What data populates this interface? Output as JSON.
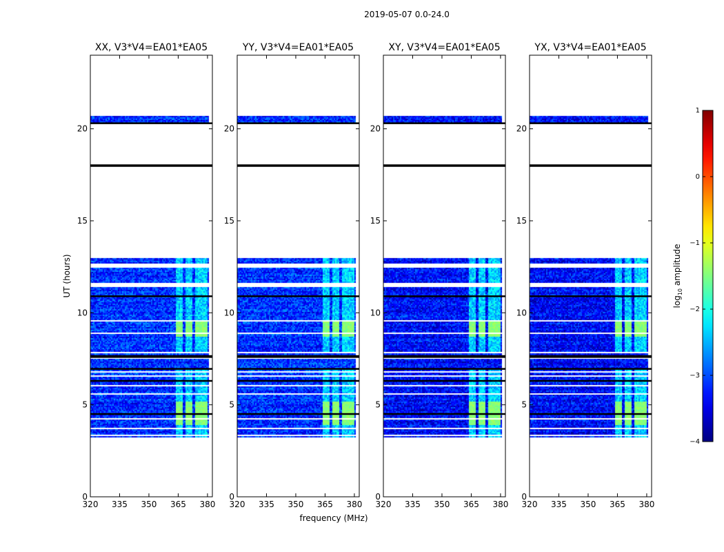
{
  "figure": {
    "suptitle": "2019-05-07 0.0-24.0"
  },
  "colormap": {
    "name": "jet"
  },
  "chart_data": {
    "type": "heatmap",
    "title": "2019-05-07 0.0-24.0",
    "xlabel": "frequency (MHz)",
    "ylabel": "UT (hours)",
    "xlim": [
      320,
      382.5
    ],
    "ylim": [
      0,
      24
    ],
    "xticks": [
      320,
      335,
      350,
      365,
      380
    ],
    "yticks": [
      0,
      5,
      10,
      15,
      20
    ],
    "panels": [
      {
        "title": "XX, V3*V4=EA01*EA05",
        "polarization": "XX"
      },
      {
        "title": "YY, V3*V4=EA01*EA05",
        "polarization": "YY"
      },
      {
        "title": "XY, V3*V4=EA01*EA05",
        "polarization": "XY"
      },
      {
        "title": "YX, V3*V4=EA01*EA05",
        "polarization": "YX"
      }
    ],
    "data_time_ranges_hours": [
      [
        3.2,
        13.0
      ],
      [
        20.35,
        20.7
      ]
    ],
    "flagged_time_ranges_hours": [
      [
        3.3,
        3.35
      ],
      [
        3.5,
        3.55
      ],
      [
        3.7,
        3.75
      ],
      [
        4.2,
        4.27
      ],
      [
        4.5,
        4.53
      ],
      [
        4.85,
        4.9
      ],
      [
        5.55,
        5.6
      ],
      [
        5.75,
        5.8
      ],
      [
        6.0,
        6.05
      ],
      [
        6.55,
        6.6
      ],
      [
        6.75,
        6.8
      ],
      [
        7.1,
        7.15
      ],
      [
        7.5,
        7.55
      ],
      [
        7.8,
        7.9
      ],
      [
        8.3,
        8.35
      ],
      [
        8.45,
        8.5
      ],
      [
        8.85,
        8.9
      ],
      [
        9.55,
        9.6
      ],
      [
        10.25,
        10.3
      ],
      [
        10.55,
        10.6
      ],
      [
        11.4,
        11.6
      ],
      [
        12.45,
        12.65
      ],
      [
        12.8,
        12.85
      ],
      [
        20.45,
        20.5
      ]
    ],
    "thick_black_lines_hours": [
      4.5,
      6.3,
      6.95,
      7.6,
      7.65,
      10.9,
      18.0,
      20.3
    ],
    "bright_bands": {
      "freq_ranges_mhz": [
        [
          363.5,
          367.5
        ],
        [
          368.5,
          372.5
        ],
        [
          373.5,
          377
        ],
        [
          377.5,
          380
        ]
      ],
      "active_time_ranges_hours": [
        [
          3.2,
          7.0
        ],
        [
          7.9,
          13.0
        ]
      ],
      "strong_time_ranges_hours": [
        [
          3.9,
          5.2
        ],
        [
          8.7,
          9.5
        ]
      ]
    },
    "colorbar": {
      "label": "log10 amplitude",
      "label_text": "log",
      "label_sub": "10",
      "label_rest": " amplitude",
      "range": [
        -4,
        1
      ],
      "ticks": [
        -4,
        -3,
        -2,
        -1,
        0,
        1
      ],
      "tick_labels": [
        "−4",
        "−3",
        "−2",
        "−1",
        "0",
        "1"
      ]
    }
  }
}
